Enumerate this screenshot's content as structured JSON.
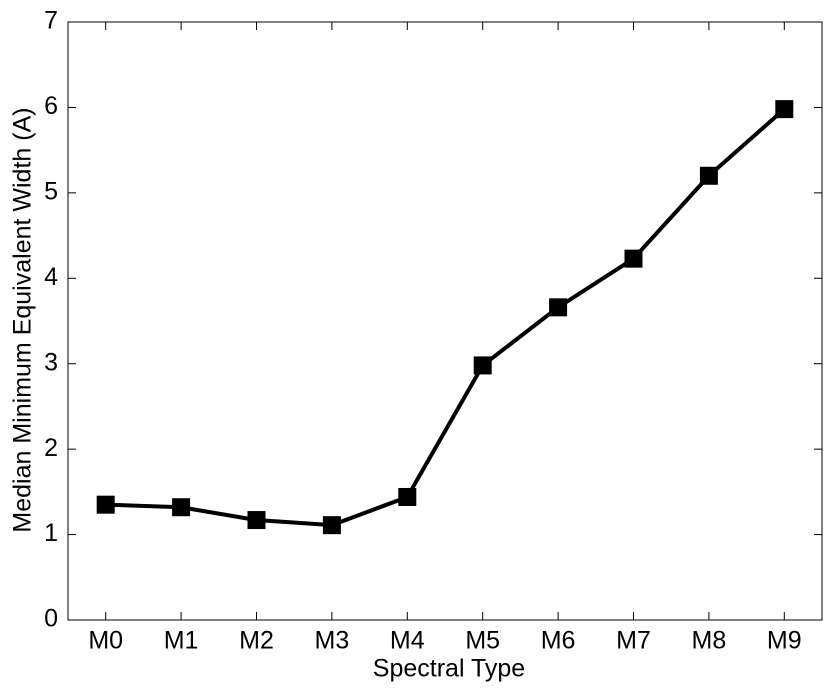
{
  "chart_data": {
    "type": "line",
    "xlabel": "Spectral Type",
    "ylabel": "Median Minimum Equivalent Width  (A)",
    "categories": [
      "M0",
      "M1",
      "M2",
      "M3",
      "M4",
      "M5",
      "M6",
      "M7",
      "M8",
      "M9"
    ],
    "series": [
      {
        "color": "#000000",
        "values": [
          1.35,
          1.32,
          1.17,
          1.11,
          1.44,
          2.98,
          3.66,
          4.23,
          5.2,
          5.98
        ]
      }
    ],
    "ylim": [
      0,
      7
    ],
    "yticks": [
      0,
      1,
      2,
      3,
      4,
      5,
      6,
      7
    ],
    "grid": false
  }
}
